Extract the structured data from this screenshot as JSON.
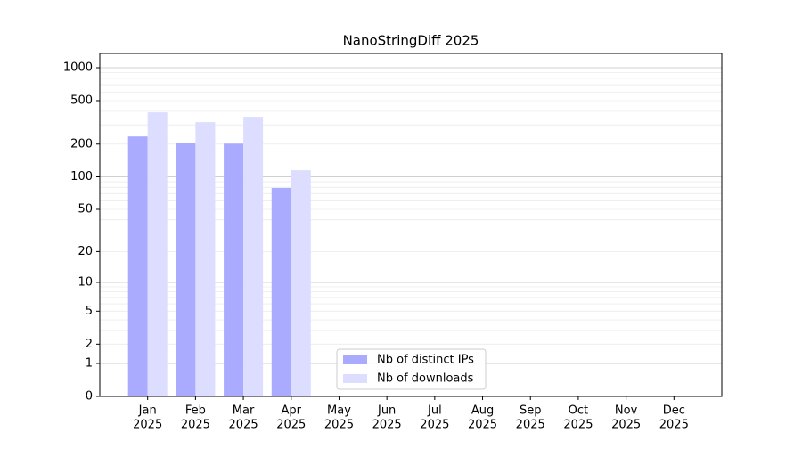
{
  "chart_data": {
    "type": "bar",
    "title": "NanoStringDiff 2025",
    "categories": [
      [
        "Jan",
        "2025"
      ],
      [
        "Feb",
        "2025"
      ],
      [
        "Mar",
        "2025"
      ],
      [
        "Apr",
        "2025"
      ],
      [
        "May",
        "2025"
      ],
      [
        "Jun",
        "2025"
      ],
      [
        "Jul",
        "2025"
      ],
      [
        "Aug",
        "2025"
      ],
      [
        "Sep",
        "2025"
      ],
      [
        "Oct",
        "2025"
      ],
      [
        "Nov",
        "2025"
      ],
      [
        "Dec",
        "2025"
      ]
    ],
    "series": [
      {
        "name": "Nb of distinct IPs",
        "color": "#aaaaff",
        "values": [
          235,
          206,
          202,
          79,
          null,
          null,
          null,
          null,
          null,
          null,
          null,
          null
        ]
      },
      {
        "name": "Nb of downloads",
        "color": "#ddddff",
        "values": [
          391,
          318,
          356,
          115,
          null,
          null,
          null,
          null,
          null,
          null,
          null,
          null
        ]
      }
    ],
    "yscale": "log1p",
    "ylim": [
      0,
      1350
    ],
    "yticks": [
      0,
      1,
      2,
      5,
      10,
      20,
      50,
      100,
      200,
      500,
      1000
    ],
    "y_major_grid": [
      1,
      10,
      100,
      1000
    ],
    "y_minor_grid": [
      2,
      3,
      4,
      5,
      6,
      7,
      8,
      9,
      20,
      30,
      40,
      50,
      60,
      70,
      80,
      90,
      200,
      300,
      400,
      500,
      600,
      700,
      800,
      900
    ],
    "legend": "lower center"
  }
}
